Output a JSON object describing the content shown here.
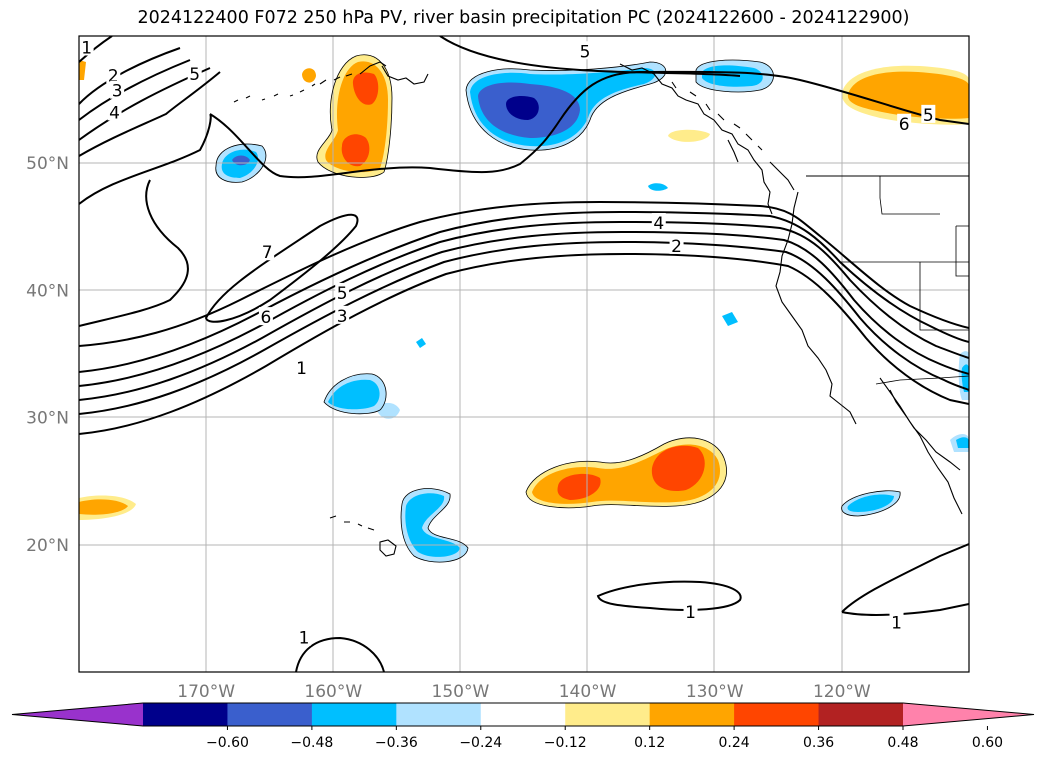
{
  "title": "2024122400 F072 250 hPa PV, river basin precipitation PC (2024122600 - 2024122900)",
  "map": {
    "projection": "PlateCarree",
    "extent_lon": [
      -180,
      -110
    ],
    "extent_lat": [
      10,
      60
    ],
    "gridlines": true
  },
  "lat_ticks": [
    {
      "lat": 50,
      "label": "50°N"
    },
    {
      "lat": 40,
      "label": "40°N"
    },
    {
      "lat": 30,
      "label": "30°N"
    },
    {
      "lat": 20,
      "label": "20°N"
    }
  ],
  "lon_ticks": [
    {
      "lon": -170,
      "label": "170°W"
    },
    {
      "lon": -160,
      "label": "160°W"
    },
    {
      "lon": -150,
      "label": "150°W"
    },
    {
      "lon": -140,
      "label": "140°W"
    },
    {
      "lon": -130,
      "label": "130°W"
    },
    {
      "lon": -120,
      "label": "120°W"
    }
  ],
  "colorbar": {
    "orientation": "horizontal",
    "extend": "both",
    "colors": [
      "#9932cc",
      "#00008b",
      "#3a5fcd",
      "#00bfff",
      "#b0e2ff",
      "#ffffff",
      "#ffec8b",
      "#ffa500",
      "#ff4500",
      "#b22222",
      "#ff82ab"
    ],
    "tick_labels": [
      "−0.60",
      "−0.48",
      "−0.36",
      "−0.24",
      "−0.12",
      "0.12",
      "0.24",
      "0.36",
      "0.48",
      "0.60"
    ]
  },
  "pv_contour_labels": [
    {
      "text": "1",
      "lon": -179.4,
      "lat": 59.1
    },
    {
      "text": "2",
      "lon": -177.3,
      "lat": 56.9
    },
    {
      "text": "3",
      "lon": -177.0,
      "lat": 55.7
    },
    {
      "text": "4",
      "lon": -177.2,
      "lat": 54.0
    },
    {
      "text": "5",
      "lon": -170.9,
      "lat": 57.0
    },
    {
      "text": "5",
      "lon": -140.2,
      "lat": 58.8
    },
    {
      "text": "6",
      "lon": -115.1,
      "lat": 53.1
    },
    {
      "text": "5",
      "lon": -113.2,
      "lat": 53.8
    },
    {
      "text": "7",
      "lon": -165.2,
      "lat": 43.0
    },
    {
      "text": "6",
      "lon": -165.3,
      "lat": 37.9
    },
    {
      "text": "5",
      "lon": -159.3,
      "lat": 39.8
    },
    {
      "text": "3",
      "lon": -159.3,
      "lat": 38.0
    },
    {
      "text": "1",
      "lon": -162.5,
      "lat": 33.9
    },
    {
      "text": "4",
      "lon": -134.4,
      "lat": 45.3
    },
    {
      "text": "2",
      "lon": -133.0,
      "lat": 43.5
    },
    {
      "text": "1",
      "lon": -131.9,
      "lat": 14.7
    },
    {
      "text": "1",
      "lon": -162.3,
      "lat": 12.7
    },
    {
      "text": "1",
      "lon": -115.7,
      "lat": 13.9
    }
  ],
  "pc_regions": [
    {
      "name": "aleutian-positive",
      "value": 0.36
    },
    {
      "name": "gulf-alaska-negative",
      "value": -0.48
    },
    {
      "name": "subtropical-positive",
      "value": 0.36
    },
    {
      "name": "hawaii-negative",
      "value": -0.24
    },
    {
      "name": "canada-positive",
      "value": 0.24
    }
  ]
}
